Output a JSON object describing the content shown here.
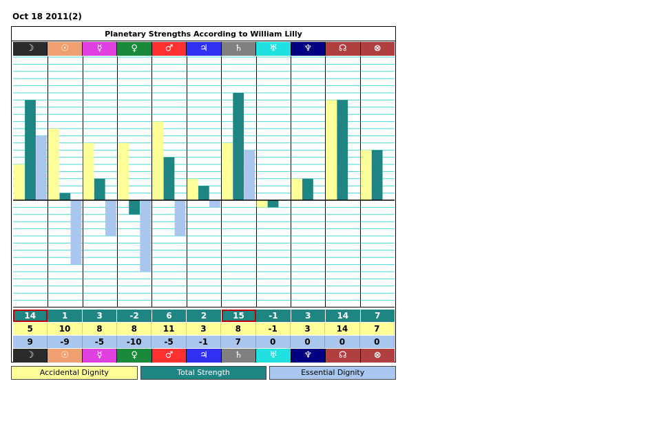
{
  "header": {
    "date": "Oct 18 2011(2)"
  },
  "planets": [
    {
      "glyph": "☽",
      "color": "#2b2b2b"
    },
    {
      "glyph": "☉",
      "color": "#f0a070"
    },
    {
      "glyph": "☿",
      "color": "#e040e0"
    },
    {
      "glyph": "♀",
      "color": "#1a8a3a"
    },
    {
      "glyph": "♂",
      "color": "#ff3030"
    },
    {
      "glyph": "♃",
      "color": "#3030f0"
    },
    {
      "glyph": "♄",
      "color": "#808080"
    },
    {
      "glyph": "♅",
      "color": "#20e0e0"
    },
    {
      "glyph": "♆",
      "color": "#000080"
    },
    {
      "glyph": "☊",
      "color": "#b04040"
    },
    {
      "glyph": "⊗",
      "color": "#b04040"
    }
  ],
  "highlighted_columns": [
    0,
    6
  ],
  "chart_data": {
    "type": "bar",
    "title": "Planetary Strengths According to William Lilly",
    "categories": [
      "☽",
      "☉",
      "☿",
      "♀",
      "♂",
      "♃",
      "♄",
      "♅",
      "♆",
      "☊",
      "⊗"
    ],
    "ylim": [
      -20,
      20
    ],
    "grid": true,
    "series": [
      {
        "name": "Accidental Dignity",
        "color": "#ffff99",
        "values": [
          5,
          10,
          8,
          8,
          11,
          3,
          8,
          -1,
          3,
          14,
          7
        ]
      },
      {
        "name": "Total Strength",
        "color": "#1f8583",
        "values": [
          14,
          1,
          3,
          -2,
          6,
          2,
          15,
          -1,
          3,
          14,
          7
        ]
      },
      {
        "name": "Essential Dignity",
        "color": "#a9c6ee",
        "values": [
          9,
          -9,
          -5,
          -10,
          -5,
          -1,
          7,
          0,
          0,
          0,
          0
        ]
      }
    ],
    "legend_position": "bottom"
  },
  "table": {
    "total": [
      "14",
      "1",
      "3",
      "-2",
      "6",
      "2",
      "15",
      "-1",
      "3",
      "14",
      "7"
    ],
    "accidental": [
      "5",
      "10",
      "8",
      "8",
      "11",
      "3",
      "8",
      "-1",
      "3",
      "14",
      "7"
    ],
    "essential": [
      "9",
      "-9",
      "-5",
      "-10",
      "-5",
      "-1",
      "7",
      "0",
      "0",
      "0",
      "0"
    ]
  },
  "legend": {
    "accidental": "Accidental Dignity",
    "total": "Total Strength",
    "essential": "Essential Dignity"
  }
}
